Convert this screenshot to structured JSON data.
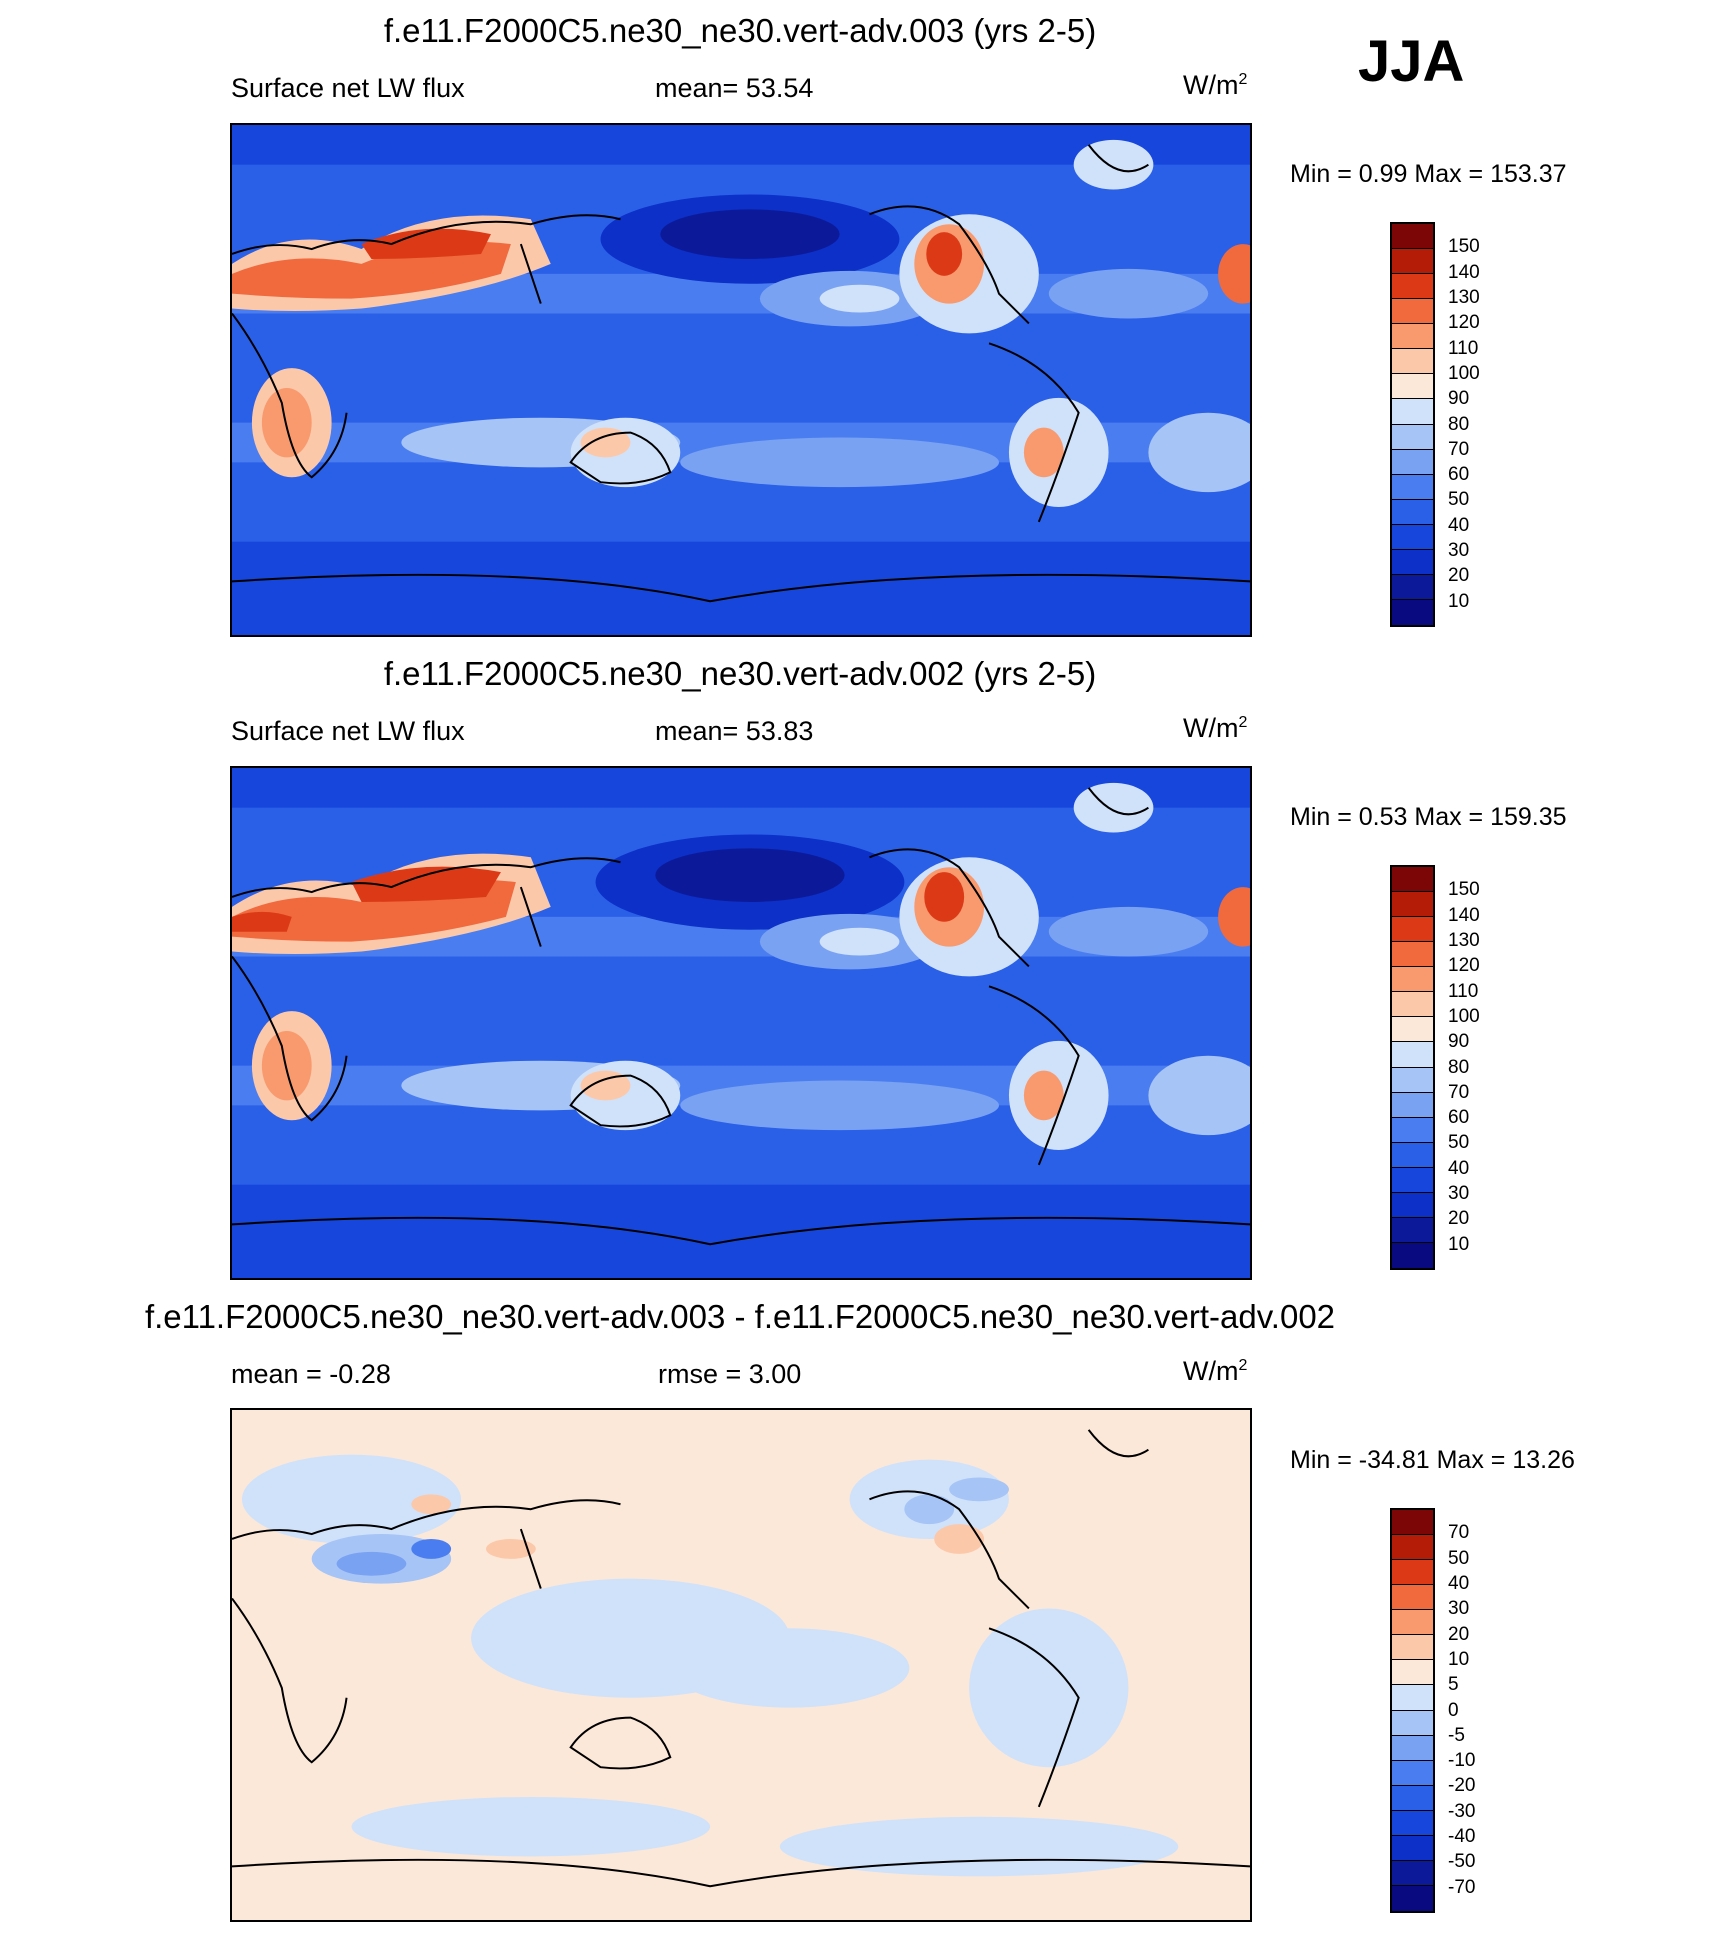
{
  "season": "JJA",
  "panels": [
    {
      "title": "f.e11.F2000C5.ne30_ne30.vert-adv.003 (yrs 2-5)",
      "left_label": "Surface net LW flux",
      "center_label": "mean=  53.54",
      "units": "W/m",
      "units_sup": "2",
      "minmax": "Min =    0.99 Max = 153.37",
      "colorbar_ticks": [
        "150",
        "140",
        "130",
        "120",
        "110",
        "100",
        "90",
        "80",
        "70",
        "60",
        "50",
        "40",
        "30",
        "20",
        "10"
      ]
    },
    {
      "title": "f.e11.F2000C5.ne30_ne30.vert-adv.002 (yrs 2-5)",
      "left_label": "Surface net LW flux",
      "center_label": "mean=  53.83",
      "units": "W/m",
      "units_sup": "2",
      "minmax": "Min =    0.53 Max = 159.35",
      "colorbar_ticks": [
        "150",
        "140",
        "130",
        "120",
        "110",
        "100",
        "90",
        "80",
        "70",
        "60",
        "50",
        "40",
        "30",
        "20",
        "10"
      ]
    },
    {
      "title": "f.e11.F2000C5.ne30_ne30.vert-adv.003 - f.e11.F2000C5.ne30_ne30.vert-adv.002",
      "left_label": "mean =  -0.28",
      "center_label": "rmse =   3.00",
      "units": "W/m",
      "units_sup": "2",
      "minmax": "Min = -34.81 Max =  13.26",
      "colorbar_ticks": [
        "70",
        "50",
        "40",
        "30",
        "20",
        "10",
        "5",
        "0",
        "-5",
        "-10",
        "-20",
        "-30",
        "-40",
        "-50",
        "-70"
      ]
    }
  ],
  "colors": {
    "abs_scale": [
      "#0a0a80",
      "#0c1a9a",
      "#0c30c8",
      "#1646dc",
      "#2a60e8",
      "#4a7ef0",
      "#7aa2f2",
      "#a6c4f6",
      "#d0e2fa",
      "#fce8d8",
      "#fcc8aa",
      "#f89a6e",
      "#f06a3e",
      "#dc3a16",
      "#b41c08",
      "#7c0606"
    ],
    "diff_scale": [
      "#0a0a80",
      "#0c1a9a",
      "#0c30c8",
      "#1646dc",
      "#2a60e8",
      "#4a7ef0",
      "#7aa2f2",
      "#a6c4f6",
      "#d0e2fa",
      "#fce8d8",
      "#fcc8aa",
      "#f89a6e",
      "#f06a3e",
      "#dc3a16",
      "#b41c08",
      "#7c0606"
    ],
    "coastline": "#000000"
  }
}
